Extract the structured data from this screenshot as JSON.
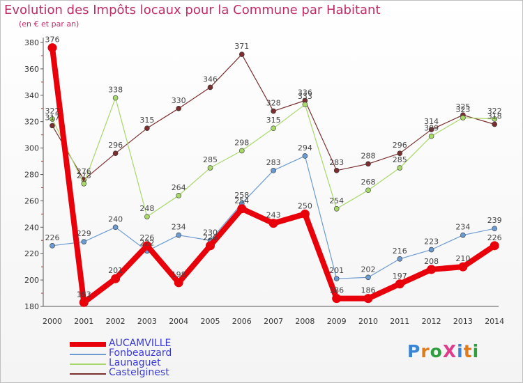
{
  "chart_data": {
    "type": "line",
    "title": "Evolution des Impôts locaux pour la Commune par Habitant",
    "subtitle": "(en € et par an)",
    "x": [
      "2000",
      "2001",
      "2002",
      "2003",
      "2004",
      "2005",
      "2006",
      "2007",
      "2008",
      "2009",
      "2010",
      "2011",
      "2012",
      "2013",
      "2014"
    ],
    "ylim": [
      180,
      380
    ],
    "yticks": [
      180,
      200,
      220,
      240,
      260,
      280,
      300,
      320,
      340,
      360,
      380
    ],
    "grid": false,
    "legend_position": "bottom-left",
    "series": [
      {
        "name": "AUCAMVILLE",
        "color": "#e8000b",
        "values": [
          376,
          183,
          201,
          226,
          198,
          226,
          254,
          243,
          250,
          186,
          186,
          197,
          208,
          210,
          226
        ]
      },
      {
        "name": "Fonbeauzard",
        "color": "#6c9bd1",
        "values": [
          226,
          229,
          240,
          222,
          234,
          230,
          258,
          283,
          294,
          201,
          202,
          216,
          223,
          234,
          239
        ]
      },
      {
        "name": "Launaguet",
        "color": "#a8d86a",
        "values": [
          322,
          273,
          338,
          248,
          264,
          285,
          298,
          315,
          333,
          254,
          268,
          285,
          309,
          323,
          322
        ]
      },
      {
        "name": "Castelginest",
        "color": "#7a2e2e",
        "values": [
          317,
          276,
          296,
          315,
          330,
          346,
          371,
          328,
          336,
          283,
          288,
          296,
          314,
          325,
          318
        ]
      }
    ]
  },
  "logo": {
    "text": "ProXiti",
    "colors": [
      "#3a84d6",
      "#e07b1a",
      "#2e9e3e",
      "#e03c8c",
      "#3a84d6",
      "#e07b1a",
      "#2e9e3e"
    ]
  }
}
